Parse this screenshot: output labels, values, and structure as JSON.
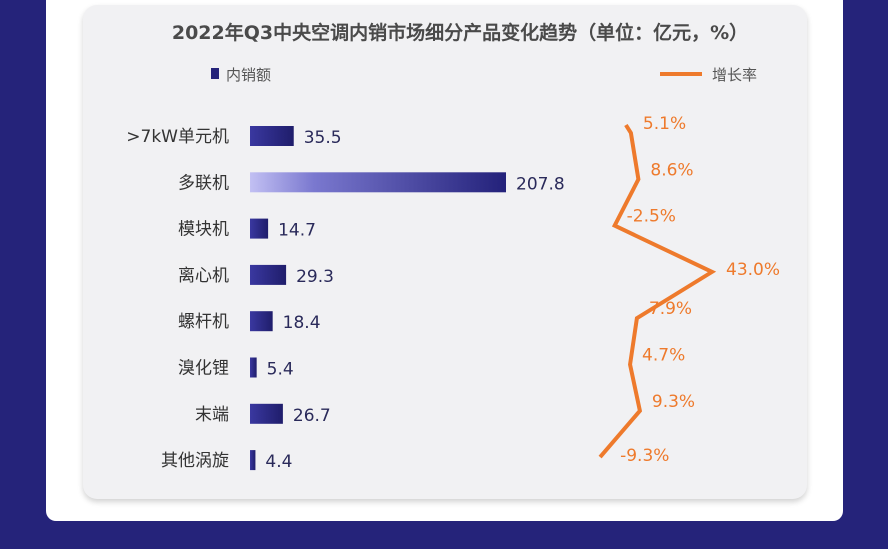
{
  "chart_data": {
    "type": "bar",
    "title": "2022年Q3中央空调内销市场细分产品变化趋势（单位：亿元，%）",
    "categories": [
      ">7kW单元机",
      "多联机",
      "模块机",
      "离心机",
      "螺杆机",
      "溴化锂",
      "末端",
      "其他涡旋"
    ],
    "series": [
      {
        "name": "内销额",
        "type": "bar",
        "values": [
          35.5,
          207.8,
          14.7,
          29.3,
          18.4,
          5.4,
          26.7,
          4.4
        ],
        "labels": [
          "35.5",
          "207.8",
          "14.7",
          "29.3",
          "18.4",
          "5.4",
          "26.7",
          "4.4"
        ]
      },
      {
        "name": "增长率",
        "type": "line",
        "values": [
          5.1,
          8.6,
          -2.5,
          43.0,
          7.9,
          4.7,
          9.3,
          -9.3
        ],
        "labels": [
          "5.1%",
          "8.6%",
          "-2.5%",
          "43.0%",
          "7.9%",
          "4.7%",
          "9.3%",
          "-9.3%"
        ]
      }
    ],
    "colors": {
      "bar": "#25237a",
      "bar_highlight": "#b8b6ee",
      "line": "#ee7a2c",
      "frame": "#25237a"
    },
    "legend_position": "top",
    "grid": false
  }
}
